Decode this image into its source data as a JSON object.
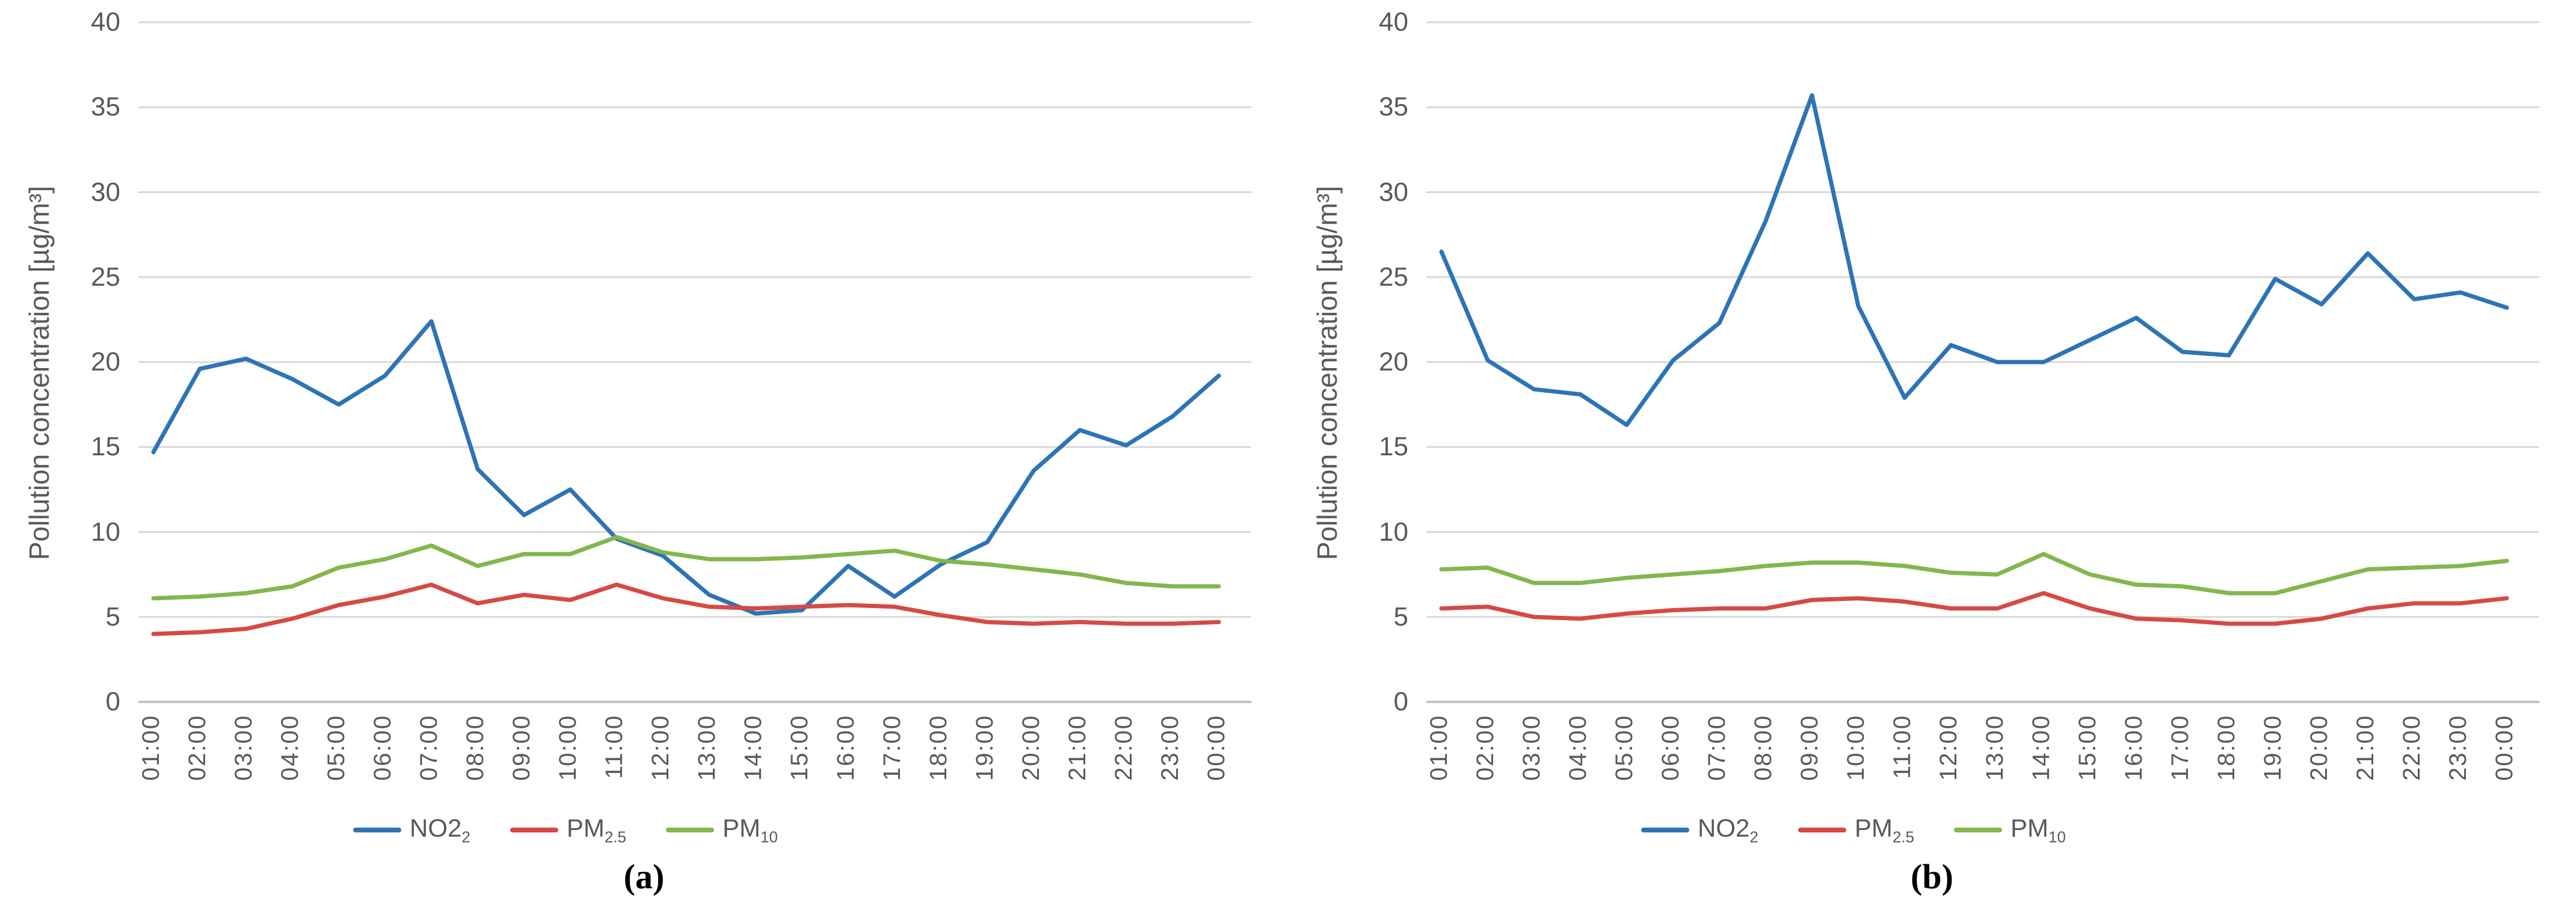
{
  "figure": {
    "y_axis_label": "Pollution concentration [µg/m³]",
    "caption_a": "(a)",
    "caption_b": "(b)",
    "colors": {
      "no2": "#2D74B5",
      "pm25": "#D64945",
      "pm10": "#84B64D",
      "gridline": "#D9D9D9",
      "axis_line": "#C3C3C3",
      "tick_text": "#595959"
    }
  },
  "chart_data": [
    {
      "type": "line",
      "panel": "a",
      "caption": "(a)",
      "ylabel": "Pollution concentration [µg/m³]",
      "ylim": [
        0,
        40
      ],
      "yticks": [
        0,
        5,
        10,
        15,
        20,
        25,
        30,
        35,
        40
      ],
      "grid": true,
      "legend_position": "bottom",
      "x": [
        "01:00",
        "02:00",
        "03:00",
        "04:00",
        "05:00",
        "06:00",
        "07:00",
        "08:00",
        "09:00",
        "10:00",
        "11:00",
        "12:00",
        "13:00",
        "14:00",
        "15:00",
        "16:00",
        "17:00",
        "18:00",
        "19:00",
        "20:00",
        "21:00",
        "22:00",
        "23:00",
        "00:00"
      ],
      "series": [
        {
          "name": "NO2₂",
          "color": "#2D74B5",
          "values": [
            14.7,
            19.6,
            20.2,
            19.0,
            17.5,
            19.2,
            22.4,
            13.7,
            11.0,
            12.5,
            9.6,
            8.6,
            6.3,
            5.2,
            5.4,
            8.0,
            6.2,
            8.1,
            9.4,
            13.6,
            16.0,
            15.1,
            16.8,
            19.2
          ]
        },
        {
          "name": "PM₂.₅",
          "color": "#D64945",
          "values": [
            4.0,
            4.1,
            4.3,
            4.9,
            5.7,
            6.2,
            6.9,
            5.8,
            6.3,
            6.0,
            6.9,
            6.1,
            5.6,
            5.5,
            5.6,
            5.7,
            5.6,
            5.1,
            4.7,
            4.6,
            4.7,
            4.6,
            4.6,
            4.7
          ]
        },
        {
          "name": "PM₁₀",
          "color": "#84B64D",
          "values": [
            6.1,
            6.2,
            6.4,
            6.8,
            7.9,
            8.4,
            9.2,
            8.0,
            8.7,
            8.7,
            9.7,
            8.8,
            8.4,
            8.4,
            8.5,
            8.7,
            8.9,
            8.3,
            8.1,
            7.8,
            7.5,
            7.0,
            6.8,
            6.8
          ]
        }
      ],
      "legend": [
        {
          "main": "NO2",
          "sub": "2"
        },
        {
          "main": "PM",
          "sub": "2.5"
        },
        {
          "main": "PM",
          "sub": "10"
        }
      ]
    },
    {
      "type": "line",
      "panel": "b",
      "caption": "(b)",
      "ylabel": "Pollution concentration [µg/m³]",
      "ylim": [
        0,
        40
      ],
      "yticks": [
        0,
        5,
        10,
        15,
        20,
        25,
        30,
        35,
        40
      ],
      "grid": true,
      "legend_position": "bottom",
      "x": [
        "01:00",
        "02:00",
        "03:00",
        "04:00",
        "05:00",
        "06:00",
        "07:00",
        "08:00",
        "09:00",
        "10:00",
        "11:00",
        "12:00",
        "13:00",
        "14:00",
        "15:00",
        "16:00",
        "17:00",
        "18:00",
        "19:00",
        "20:00",
        "21:00",
        "22:00",
        "23:00",
        "00:00"
      ],
      "series": [
        {
          "name": "NO2₂",
          "color": "#2D74B5",
          "values": [
            26.5,
            20.1,
            18.4,
            18.1,
            16.3,
            20.1,
            22.3,
            28.3,
            35.7,
            23.3,
            17.9,
            21.0,
            20.0,
            20.0,
            21.3,
            22.6,
            20.6,
            20.4,
            24.9,
            23.4,
            26.4,
            23.7,
            24.1,
            23.2
          ]
        },
        {
          "name": "PM₂.₅",
          "color": "#D64945",
          "values": [
            5.5,
            5.6,
            5.0,
            4.9,
            5.2,
            5.4,
            5.5,
            5.5,
            6.0,
            6.1,
            5.9,
            5.5,
            5.5,
            6.4,
            5.5,
            4.9,
            4.8,
            4.6,
            4.6,
            4.9,
            5.5,
            5.8,
            5.8,
            6.1
          ]
        },
        {
          "name": "PM₁₀",
          "color": "#84B64D",
          "values": [
            7.8,
            7.9,
            7.0,
            7.0,
            7.3,
            7.5,
            7.7,
            8.0,
            8.2,
            8.2,
            8.0,
            7.6,
            7.5,
            8.7,
            7.5,
            6.9,
            6.8,
            6.4,
            6.4,
            7.1,
            7.8,
            7.9,
            8.0,
            8.3
          ]
        }
      ],
      "legend": [
        {
          "main": "NO2",
          "sub": "2"
        },
        {
          "main": "PM",
          "sub": "2.5"
        },
        {
          "main": "PM",
          "sub": "10"
        }
      ]
    }
  ]
}
